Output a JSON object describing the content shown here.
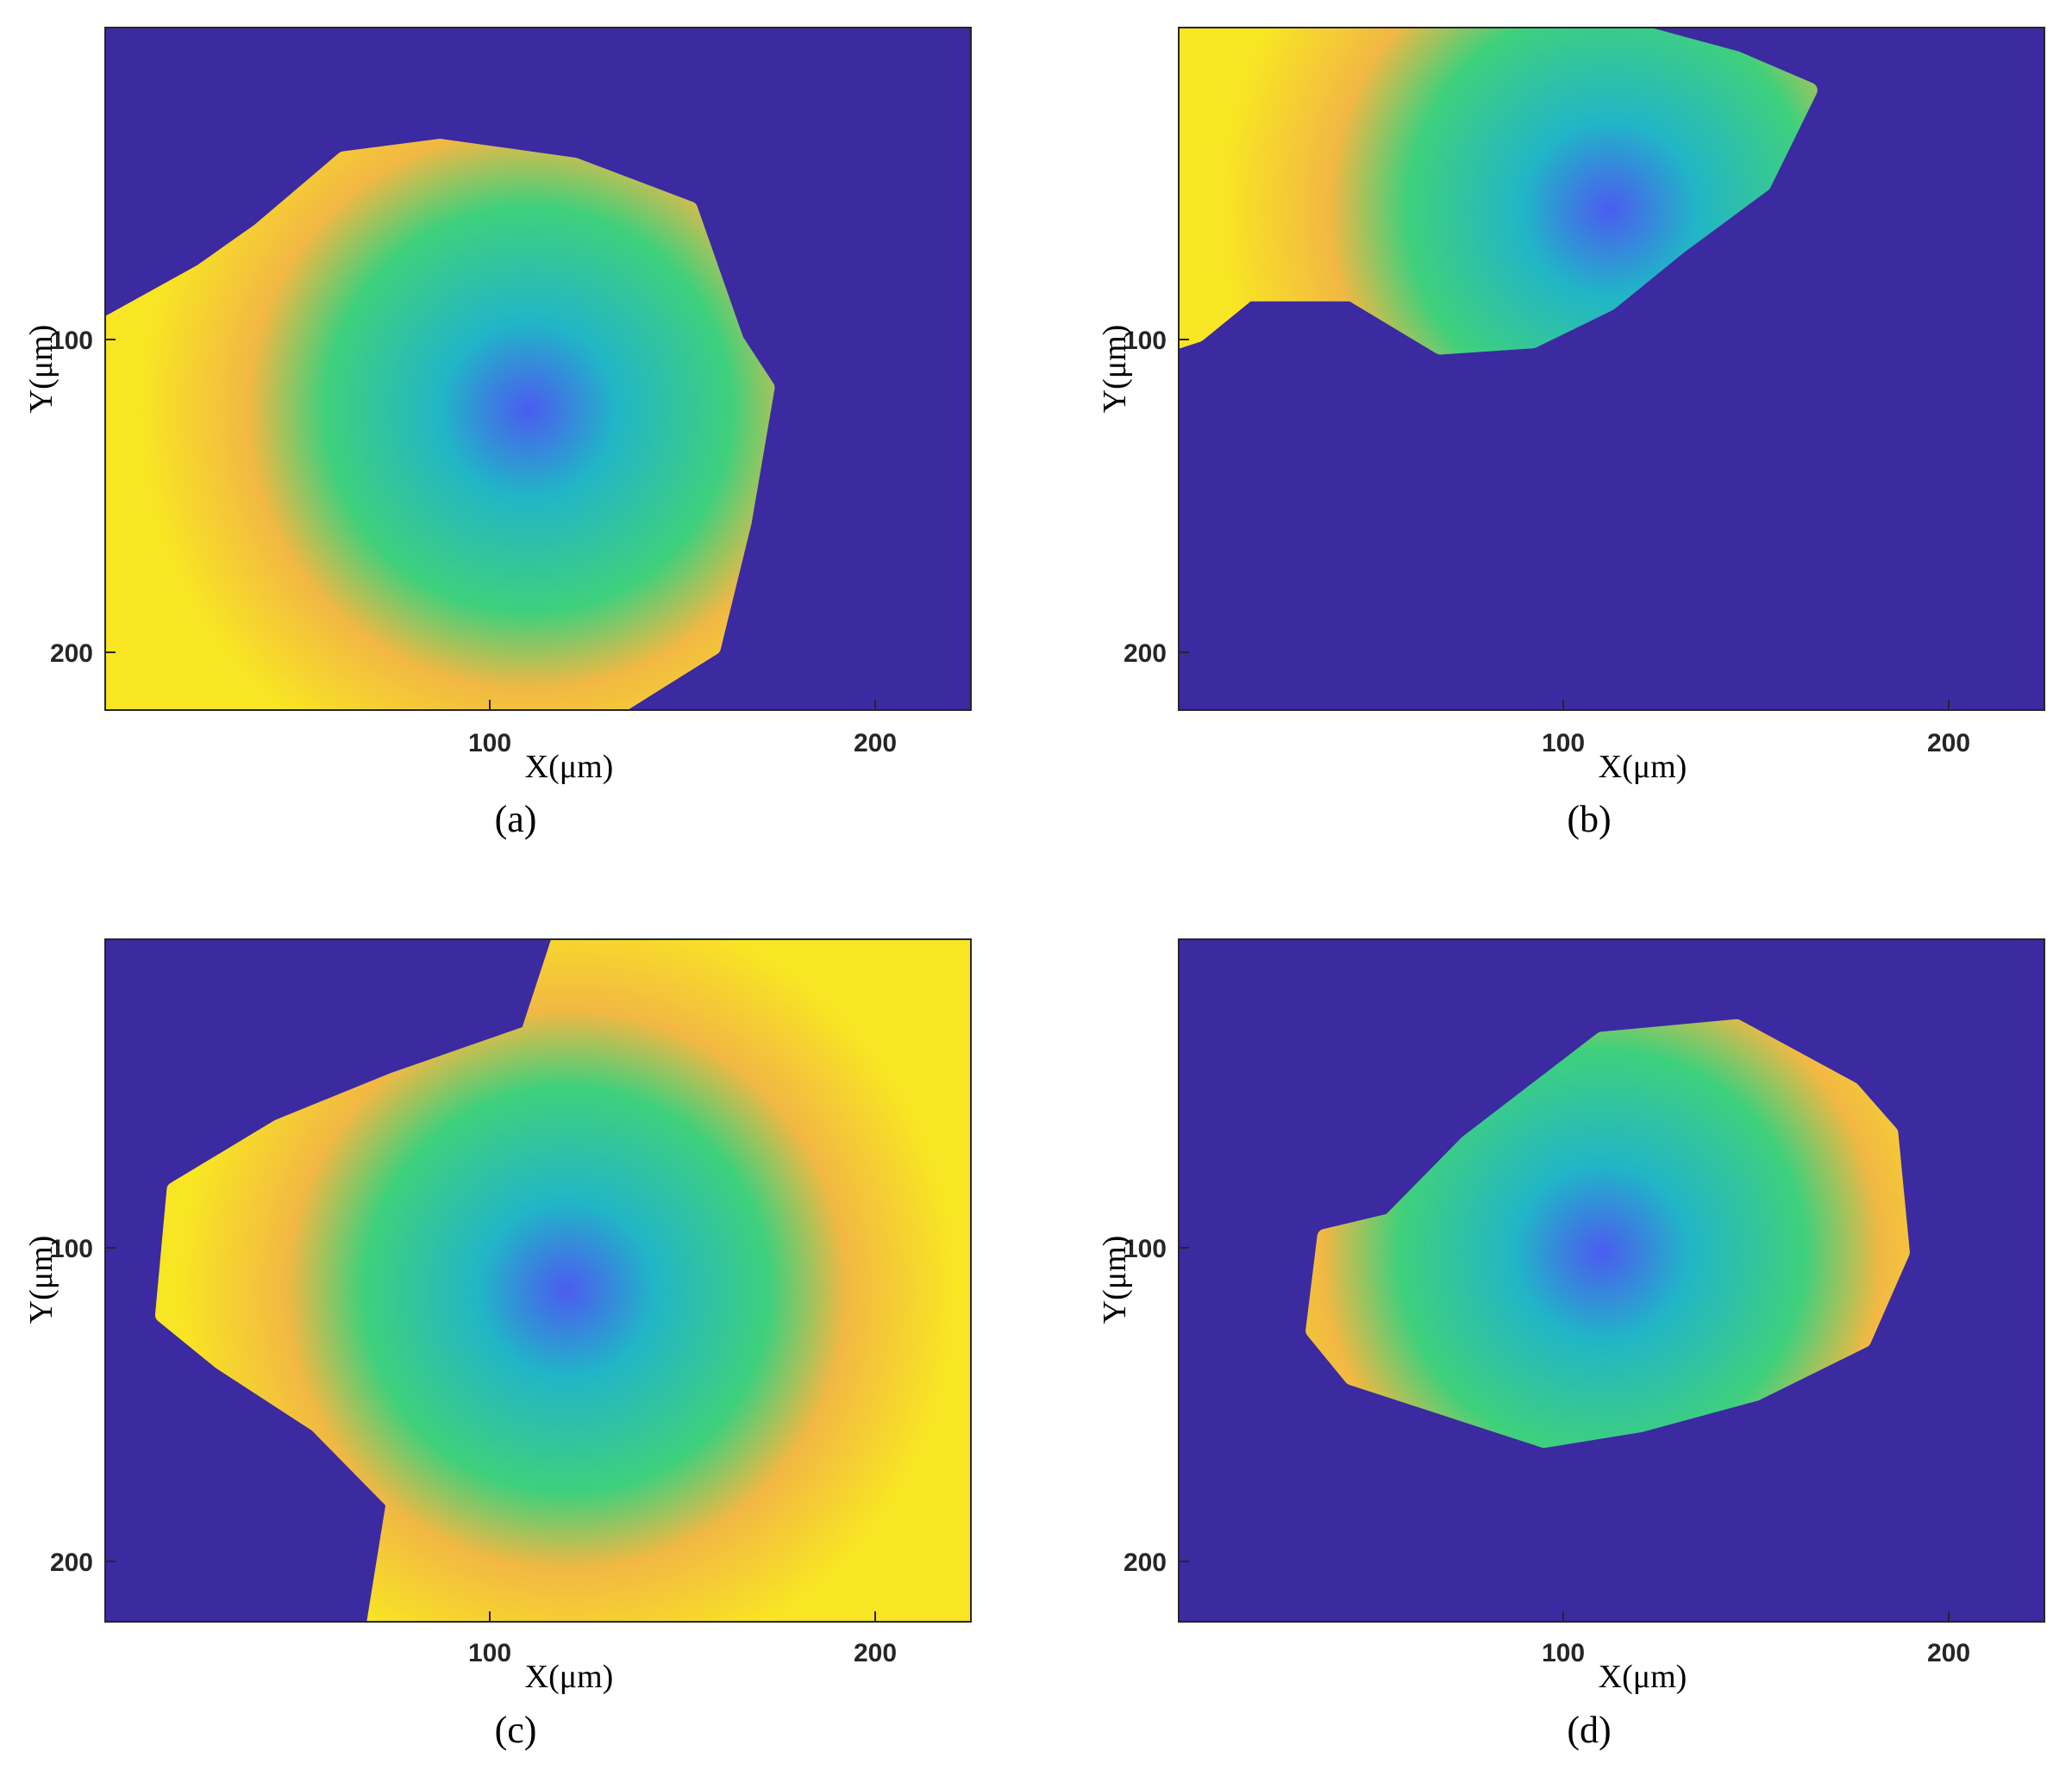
{
  "figure": {
    "panels": [
      {
        "id": "a",
        "caption": "(a)"
      },
      {
        "id": "b",
        "caption": "(b)"
      },
      {
        "id": "c",
        "caption": "(c)"
      },
      {
        "id": "d",
        "caption": "(d)"
      }
    ]
  },
  "chart_data": [
    {
      "type": "heatmap",
      "panel": "(a)",
      "xlabel": "X(μm)",
      "ylabel": "Y(μm)",
      "xticks": [
        100,
        200
      ],
      "yticks": [
        100,
        200
      ],
      "xlim": [
        0,
        225
      ],
      "ylim": [
        0,
        218
      ],
      "y_reversed": true,
      "grid": false,
      "colormap": [
        "#3c2a9f",
        "#4b5cf0",
        "#21b5c7",
        "#3fd07c",
        "#f2b843",
        "#f8e523"
      ],
      "background_color": "#3b2aa0",
      "min_center": [
        110,
        122
      ],
      "support_region": [
        [
          62,
          42
        ],
        [
          87,
          38
        ],
        [
          122,
          44
        ],
        [
          152,
          58
        ],
        [
          164,
          100
        ],
        [
          172,
          115
        ],
        [
          166,
          158
        ],
        [
          158,
          198
        ],
        [
          132,
          218
        ],
        [
          100,
          218
        ],
        [
          0,
          218
        ],
        [
          0,
          95
        ],
        [
          25,
          78
        ],
        [
          40,
          65
        ]
      ]
    },
    {
      "type": "heatmap",
      "panel": "(b)",
      "xlabel": "X(μm)",
      "ylabel": "Y(μm)",
      "xticks": [
        100,
        200
      ],
      "yticks": [
        100,
        200
      ],
      "xlim": [
        0,
        225
      ],
      "ylim": [
        0,
        218
      ],
      "y_reversed": true,
      "grid": false,
      "colormap": [
        "#3c2a9f",
        "#4b5cf0",
        "#21b5c7",
        "#3fd07c",
        "#f2b843",
        "#f8e523"
      ],
      "background_color": "#3b2aa0",
      "min_center": [
        112,
        58
      ],
      "support_region": [
        [
          0,
          0
        ],
        [
          115,
          0
        ],
        [
          145,
          10
        ],
        [
          164,
          20
        ],
        [
          152,
          50
        ],
        [
          130,
          70
        ],
        [
          112,
          88
        ],
        [
          92,
          100
        ],
        [
          68,
          102
        ],
        [
          45,
          85
        ],
        [
          18,
          85
        ],
        [
          5,
          98
        ],
        [
          0,
          100
        ]
      ]
    },
    {
      "type": "heatmap",
      "panel": "(c)",
      "xlabel": "X(μm)",
      "ylabel": "Y(μm)",
      "xticks": [
        100,
        200
      ],
      "yticks": [
        100,
        200
      ],
      "xlim": [
        0,
        225
      ],
      "ylim": [
        0,
        218
      ],
      "y_reversed": true,
      "grid": false,
      "colormap": [
        "#3c2a9f",
        "#4b5cf0",
        "#21b5c7",
        "#3fd07c",
        "#f2b843",
        "#f8e523"
      ],
      "background_color": "#3b2aa0",
      "min_center": [
        120,
        112
      ],
      "support_region": [
        [
          118,
          0
        ],
        [
          225,
          0
        ],
        [
          225,
          218
        ],
        [
          70,
          218
        ],
        [
          75,
          180
        ],
        [
          55,
          155
        ],
        [
          30,
          135
        ],
        [
          15,
          120
        ],
        [
          18,
          80
        ],
        [
          45,
          60
        ],
        [
          75,
          45
        ],
        [
          110,
          30
        ]
      ]
    },
    {
      "type": "heatmap",
      "panel": "(d)",
      "xlabel": "X(μm)",
      "ylabel": "Y(μm)",
      "xticks": [
        100,
        200
      ],
      "yticks": [
        100,
        200
      ],
      "xlim": [
        0,
        225
      ],
      "ylim": [
        0,
        218
      ],
      "y_reversed": true,
      "grid": false,
      "colormap": [
        "#3c2a9f",
        "#4b5cf0",
        "#21b5c7",
        "#3fd07c",
        "#f2b843",
        "#f8e523"
      ],
      "background_color": "#3b2aa0",
      "min_center": [
        110,
        100
      ],
      "support_region": [
        [
          75,
          65
        ],
        [
          110,
          32
        ],
        [
          145,
          28
        ],
        [
          175,
          48
        ],
        [
          185,
          62
        ],
        [
          188,
          100
        ],
        [
          178,
          128
        ],
        [
          150,
          145
        ],
        [
          120,
          155
        ],
        [
          95,
          160
        ],
        [
          70,
          150
        ],
        [
          45,
          140
        ],
        [
          35,
          125
        ],
        [
          38,
          95
        ],
        [
          55,
          90
        ]
      ]
    }
  ]
}
